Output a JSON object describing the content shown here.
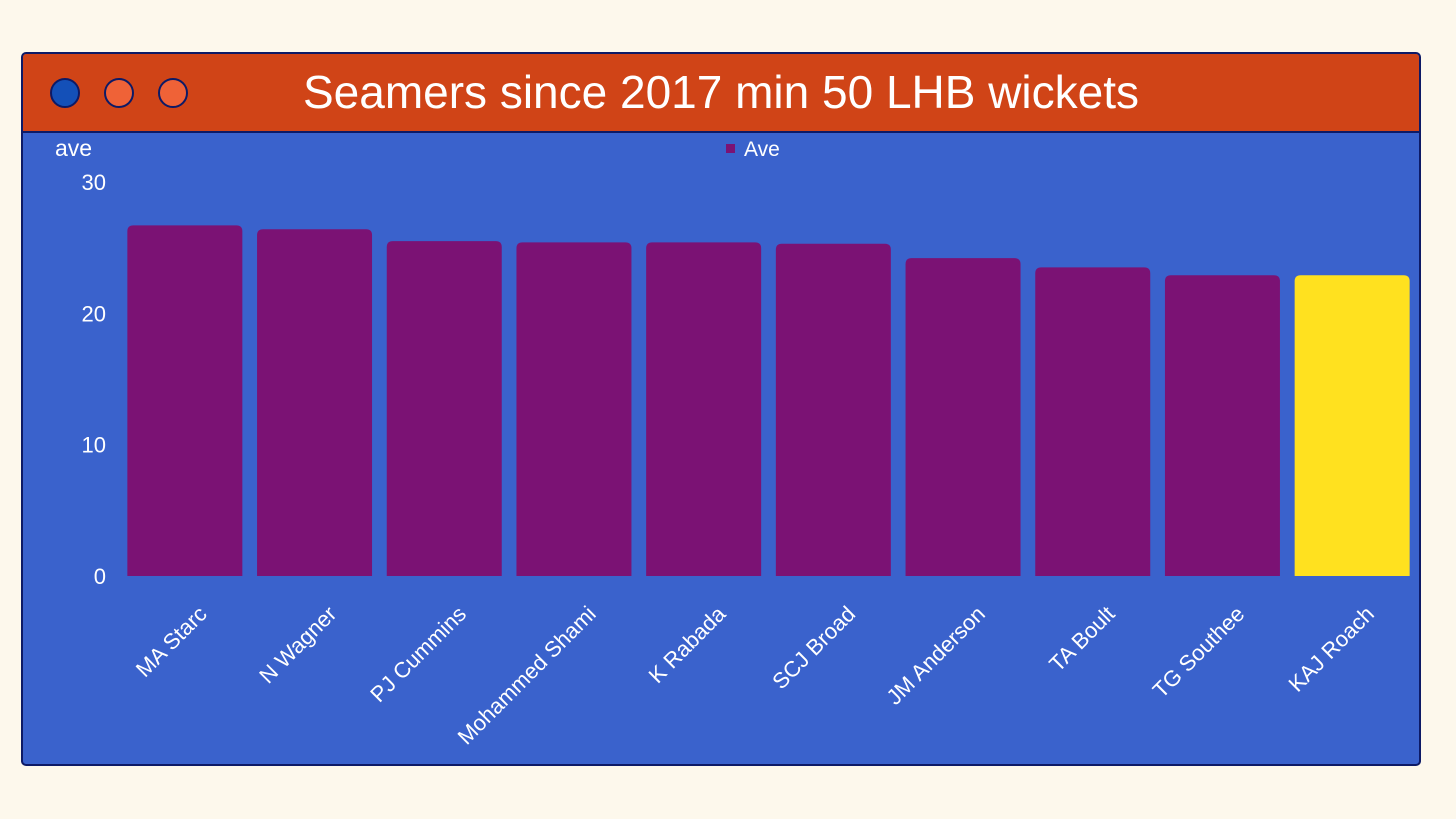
{
  "window": {
    "title": "Seamers since 2017 min 50 LHB wickets",
    "dots": [
      {
        "name": "blue-dot",
        "color": "#1450b8"
      },
      {
        "name": "orange-dot-1",
        "color": "#ef6237"
      },
      {
        "name": "orange-dot-2",
        "color": "#ef6237"
      }
    ]
  },
  "colors": {
    "background": "#fdf8ec",
    "panel": "#3a62cc",
    "titlebar": "#d04417",
    "border": "#0d1a66",
    "bar": "#7b1274",
    "highlight_bar": "#ffe11f",
    "text": "#ffffff"
  },
  "chart_data": {
    "type": "bar",
    "title": "Seamers since 2017 min 50 LHB wickets",
    "xlabel": "",
    "ylabel": "ave",
    "ylim": [
      0,
      30
    ],
    "yticks": [
      0,
      10,
      20,
      30
    ],
    "grid": false,
    "legend": {
      "position": "top-center",
      "entries": [
        "Ave"
      ]
    },
    "categories": [
      "MA Starc",
      "N Wagner",
      "PJ Cummins",
      "Mohammed Shami",
      "K Rabada",
      "SCJ Broad",
      "JM Anderson",
      "TA Boult",
      "TG Southee",
      "KAJ Roach"
    ],
    "series": [
      {
        "name": "Ave",
        "values": [
          26.7,
          26.4,
          25.5,
          25.4,
          25.4,
          25.3,
          24.2,
          23.5,
          22.9,
          22.9
        ]
      }
    ],
    "highlight_category": "KAJ Roach"
  }
}
